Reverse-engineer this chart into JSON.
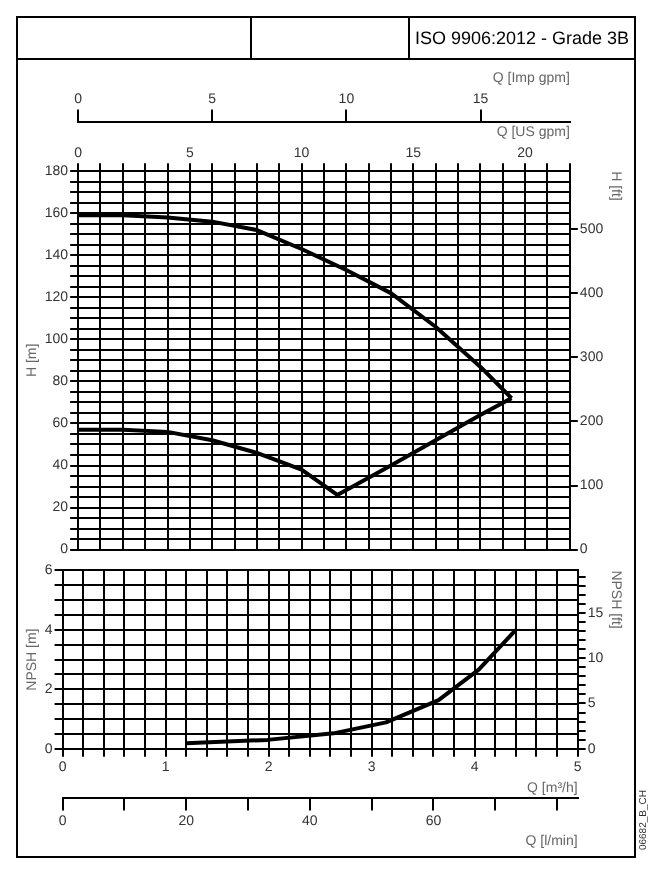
{
  "chart_data": [
    {
      "type": "line",
      "title": "ISO 9906:2012 - Grade 3B",
      "xlabel": "Q [US gpm]",
      "x2label": "Q [Imp gpm]",
      "ylabel": "H [m]",
      "y2label": "H [ft]",
      "grid": true,
      "marker": "none",
      "xlim": [
        0,
        22.01
      ],
      "xticks": [
        0,
        {
          "value": 1,
          "label": null
        },
        {
          "value": 2,
          "label": null
        },
        {
          "value": 3,
          "label": null
        },
        {
          "value": 4,
          "label": null
        },
        5,
        {
          "value": 6,
          "label": null
        },
        {
          "value": 7,
          "label": null
        },
        {
          "value": 8,
          "label": null
        },
        {
          "value": 9,
          "label": null
        },
        10,
        {
          "value": 11,
          "label": null
        },
        {
          "value": 12,
          "label": null
        },
        {
          "value": 13,
          "label": null
        },
        {
          "value": 14,
          "label": null
        },
        15,
        {
          "value": 16,
          "label": null
        },
        {
          "value": 17,
          "label": null
        },
        {
          "value": 18,
          "label": null
        },
        {
          "value": 19,
          "label": null
        },
        20,
        {
          "value": 21,
          "label": null
        },
        {
          "value": 22,
          "label": null
        }
      ],
      "x2lim": [
        0,
        18.33
      ],
      "x2ticks": [
        0,
        5,
        10,
        15
      ],
      "ylim": [
        0,
        180
      ],
      "yticks": [
        0,
        {
          "value": 5,
          "label": null
        },
        {
          "value": 10,
          "label": null
        },
        {
          "value": 15,
          "label": null
        },
        20,
        {
          "value": 25,
          "label": null
        },
        {
          "value": 30,
          "label": null
        },
        {
          "value": 35,
          "label": null
        },
        40,
        {
          "value": 45,
          "label": null
        },
        {
          "value": 50,
          "label": null
        },
        {
          "value": 55,
          "label": null
        },
        60,
        {
          "value": 65,
          "label": null
        },
        {
          "value": 70,
          "label": null
        },
        {
          "value": 75,
          "label": null
        },
        80,
        {
          "value": 85,
          "label": null
        },
        {
          "value": 90,
          "label": null
        },
        {
          "value": 95,
          "label": null
        },
        100,
        {
          "value": 105,
          "label": null
        },
        {
          "value": 110,
          "label": null
        },
        {
          "value": 115,
          "label": null
        },
        120,
        {
          "value": 125,
          "label": null
        },
        {
          "value": 130,
          "label": null
        },
        {
          "value": 135,
          "label": null
        },
        140,
        {
          "value": 145,
          "label": null
        },
        {
          "value": 150,
          "label": null
        },
        {
          "value": 155,
          "label": null
        },
        160,
        {
          "value": 165,
          "label": null
        },
        {
          "value": 170,
          "label": null
        },
        {
          "value": 175,
          "label": null
        },
        180
      ],
      "y2lim": [
        0,
        590.55
      ],
      "y2ticks": [
        0,
        100,
        200,
        300,
        400,
        500
      ],
      "series": [
        {
          "color": "#000000",
          "x": [
            0,
            2,
            4,
            6,
            8,
            10,
            12,
            14,
            16,
            18,
            19.4
          ],
          "values": [
            159,
            159,
            158,
            156,
            152,
            143,
            133,
            122,
            106,
            87,
            72
          ]
        },
        {
          "color": "#000000",
          "x": [
            0,
            2,
            4,
            6,
            8,
            10,
            11.6,
            14,
            16,
            18,
            19.4
          ],
          "values": [
            57,
            57,
            56,
            52,
            46,
            38,
            26,
            40,
            52,
            64,
            72
          ]
        }
      ]
    },
    {
      "type": "line",
      "xlabel": "Q [m³/h]",
      "ylabel": "NPSH [m]",
      "y2label": "NPSH [ft]",
      "x2label": "Q [l/min]",
      "grid": true,
      "marker": "none",
      "annotations": [
        "06682_B_CH"
      ],
      "xlim": [
        0,
        5
      ],
      "xticks": [
        0,
        {
          "value": 0.2,
          "label": null
        },
        {
          "value": 0.4,
          "label": null
        },
        {
          "value": 0.6,
          "label": null
        },
        {
          "value": 0.8,
          "label": null
        },
        1,
        {
          "value": 1.2,
          "label": null
        },
        {
          "value": 1.4,
          "label": null
        },
        {
          "value": 1.6,
          "label": null
        },
        {
          "value": 1.8,
          "label": null
        },
        2,
        {
          "value": 2.2,
          "label": null
        },
        {
          "value": 2.4,
          "label": null
        },
        {
          "value": 2.6,
          "label": null
        },
        {
          "value": 2.8,
          "label": null
        },
        3,
        {
          "value": 3.2,
          "label": null
        },
        {
          "value": 3.4,
          "label": null
        },
        {
          "value": 3.6,
          "label": null
        },
        {
          "value": 3.8,
          "label": null
        },
        4,
        {
          "value": 4.2,
          "label": null
        },
        {
          "value": 4.4,
          "label": null
        },
        {
          "value": 4.6,
          "label": null
        },
        {
          "value": 4.8,
          "label": null
        },
        5
      ],
      "ylim": [
        0,
        6
      ],
      "yticks": [
        0,
        {
          "value": 0.5,
          "label": null
        },
        {
          "value": 1,
          "label": null
        },
        {
          "value": 1.5,
          "label": null
        },
        2,
        {
          "value": 2.5,
          "label": null
        },
        {
          "value": 3,
          "label": null
        },
        {
          "value": 3.5,
          "label": null
        },
        4,
        {
          "value": 4.5,
          "label": null
        },
        {
          "value": 5,
          "label": null
        },
        {
          "value": 5.5,
          "label": null
        },
        6
      ],
      "y2lim": [
        0,
        19.685
      ],
      "y2ticks": [
        0,
        {
          "value": 1,
          "label": null
        },
        {
          "value": 2,
          "label": null
        },
        {
          "value": 3,
          "label": null
        },
        {
          "value": 4,
          "label": null
        },
        5,
        {
          "value": 6,
          "label": null
        },
        {
          "value": 7,
          "label": null
        },
        {
          "value": 8,
          "label": null
        },
        {
          "value": 9,
          "label": null
        },
        10,
        {
          "value": 11,
          "label": null
        },
        {
          "value": 12,
          "label": null
        },
        {
          "value": 13,
          "label": null
        },
        {
          "value": 14,
          "label": null
        },
        15,
        {
          "value": 16,
          "label": null
        },
        {
          "value": 17,
          "label": null
        },
        {
          "value": 18,
          "label": null
        },
        {
          "value": 19,
          "label": null
        }
      ],
      "x2lim": [
        0,
        83.33
      ],
      "x2ticks": [
        0,
        {
          "value": 10,
          "label": null
        },
        20,
        {
          "value": 30,
          "label": null
        },
        40,
        {
          "value": 50,
          "label": null
        },
        60,
        {
          "value": 70,
          "label": null
        },
        {
          "value": 80,
          "label": null
        }
      ],
      "series": [
        {
          "color": "#000000",
          "x": [
            1.2,
            1.99,
            2.63,
            3.14,
            3.65,
            4.04,
            4.4
          ],
          "values": [
            0.19,
            0.3,
            0.52,
            0.89,
            1.64,
            2.66,
            4.0
          ]
        }
      ]
    }
  ]
}
